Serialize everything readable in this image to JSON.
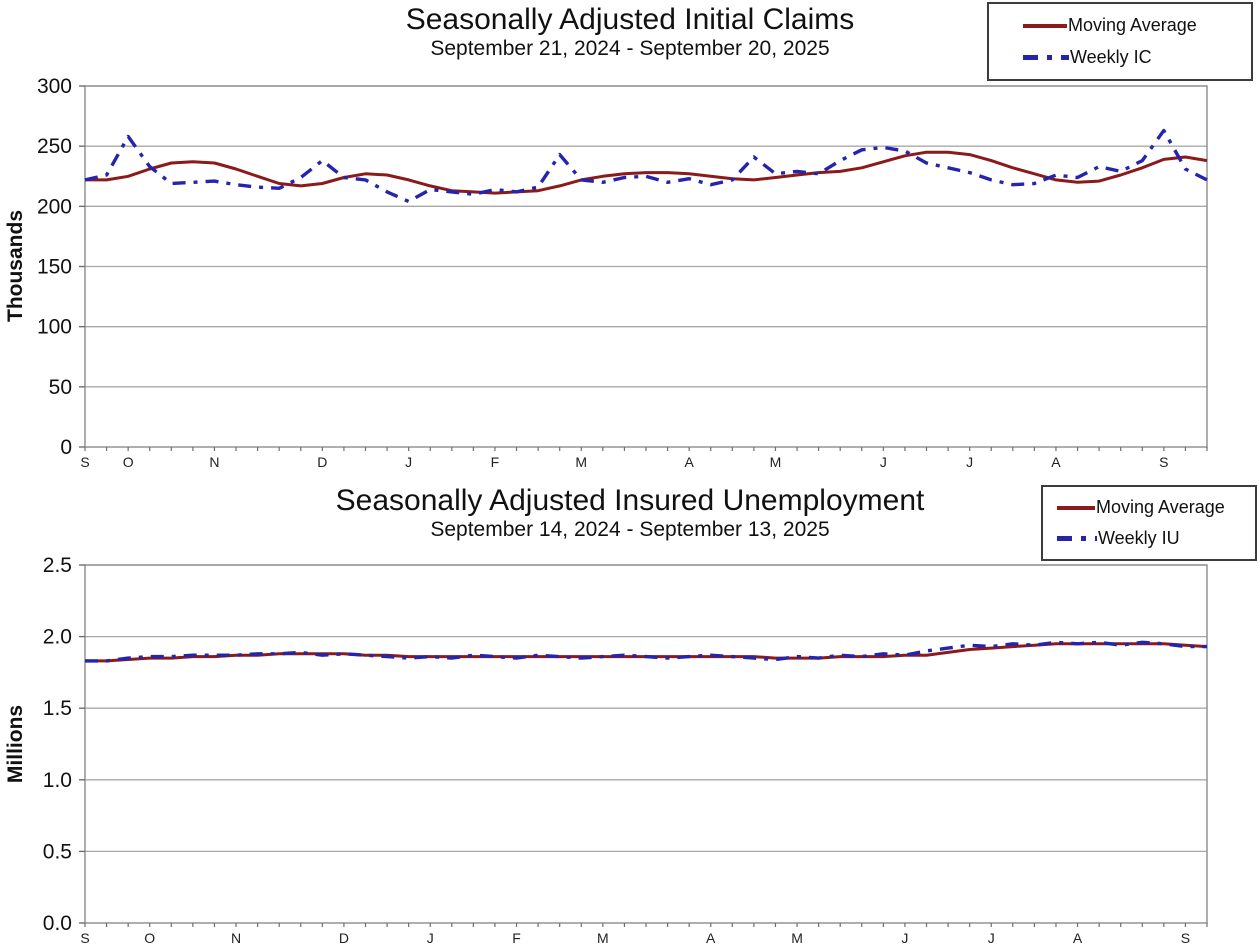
{
  "colors": {
    "moving_average": "#8B1A1A",
    "weekly": "#2424AC",
    "gridline": "#a8a8a8",
    "plot_border": "#8c8c8c",
    "tick": "#6e6e6e",
    "text": "#111111",
    "background": "#ffffff"
  },
  "chart_data": [
    {
      "type": "line",
      "title": "Seasonally Adjusted Initial Claims",
      "subtitle": "September 21, 2024 - September 20, 2025",
      "y_axis_label": "Thousands",
      "units": "thousands",
      "ylim": [
        0,
        300
      ],
      "y_ticks": [
        0,
        50,
        100,
        150,
        200,
        250,
        300
      ],
      "y_tick_labels": [
        "0",
        "50",
        "100",
        "150",
        "200",
        "250",
        "300"
      ],
      "grid": true,
      "legend_position": "top-right",
      "x_month_labels": [
        "S",
        "O",
        "N",
        "D",
        "J",
        "F",
        "M",
        "A",
        "M",
        "J",
        "J",
        "A",
        "S"
      ],
      "x_month_weeks": [
        0,
        2,
        6,
        11,
        15,
        19,
        23,
        28,
        32,
        37,
        41,
        45,
        50
      ],
      "weeks": 53,
      "series": [
        {
          "name": "Moving Average",
          "style": "solid",
          "color": "#8B1A1A",
          "values": [
            222,
            222,
            225,
            231,
            236,
            237,
            236,
            231,
            225,
            219,
            217,
            219,
            224,
            227,
            226,
            222,
            217,
            213,
            212,
            211,
            212,
            213,
            217,
            222,
            225,
            227,
            228,
            228,
            227,
            225,
            223,
            222,
            224,
            226,
            228,
            229,
            232,
            237,
            242,
            245,
            245,
            243,
            238,
            232,
            227,
            222,
            220,
            221,
            226,
            232,
            239,
            241,
            238
          ]
        },
        {
          "name": "Weekly IC",
          "style": "dashed",
          "color": "#2424AC",
          "values": [
            222,
            226,
            258,
            233,
            219,
            220,
            221,
            218,
            216,
            215,
            224,
            238,
            224,
            222,
            212,
            204,
            214,
            212,
            210,
            214,
            212,
            216,
            243,
            222,
            220,
            224,
            225,
            220,
            223,
            218,
            222,
            241,
            227,
            229,
            227,
            238,
            247,
            249,
            246,
            236,
            232,
            228,
            222,
            218,
            219,
            226,
            224,
            233,
            229,
            238,
            263,
            231,
            222
          ]
        }
      ]
    },
    {
      "type": "line",
      "title": "Seasonally Adjusted Insured Unemployment",
      "subtitle": "September 14, 2024 - September 13, 2025",
      "y_axis_label": "Millions",
      "units": "millions",
      "ylim": [
        0,
        2.5
      ],
      "y_ticks": [
        0,
        0.5,
        1.0,
        1.5,
        2.0,
        2.5
      ],
      "y_tick_labels": [
        "0.0",
        "0.5",
        "1.0",
        "1.5",
        "2.0",
        "2.5"
      ],
      "grid": true,
      "legend_position": "top-right",
      "x_month_labels": [
        "S",
        "O",
        "N",
        "D",
        "J",
        "F",
        "M",
        "A",
        "M",
        "J",
        "J",
        "A",
        "S"
      ],
      "x_month_weeks": [
        0,
        3,
        7,
        12,
        16,
        20,
        24,
        29,
        33,
        38,
        42,
        46,
        51
      ],
      "weeks": 53,
      "series": [
        {
          "name": "Moving Average",
          "style": "solid",
          "color": "#8B1A1A",
          "values": [
            1.83,
            1.83,
            1.84,
            1.85,
            1.85,
            1.86,
            1.86,
            1.87,
            1.87,
            1.88,
            1.88,
            1.88,
            1.88,
            1.87,
            1.87,
            1.86,
            1.86,
            1.86,
            1.86,
            1.86,
            1.86,
            1.86,
            1.86,
            1.86,
            1.86,
            1.86,
            1.86,
            1.86,
            1.86,
            1.86,
            1.86,
            1.86,
            1.85,
            1.85,
            1.85,
            1.86,
            1.86,
            1.86,
            1.87,
            1.87,
            1.89,
            1.91,
            1.92,
            1.93,
            1.94,
            1.95,
            1.95,
            1.95,
            1.95,
            1.95,
            1.95,
            1.94,
            1.93
          ]
        },
        {
          "name": "Weekly IU",
          "style": "dashed",
          "color": "#2424AC",
          "values": [
            1.83,
            1.83,
            1.85,
            1.86,
            1.86,
            1.87,
            1.87,
            1.87,
            1.88,
            1.88,
            1.89,
            1.87,
            1.88,
            1.87,
            1.86,
            1.85,
            1.86,
            1.85,
            1.87,
            1.86,
            1.85,
            1.87,
            1.86,
            1.85,
            1.86,
            1.87,
            1.86,
            1.85,
            1.86,
            1.87,
            1.86,
            1.85,
            1.84,
            1.86,
            1.85,
            1.87,
            1.86,
            1.88,
            1.87,
            1.9,
            1.92,
            1.94,
            1.93,
            1.95,
            1.94,
            1.96,
            1.95,
            1.96,
            1.94,
            1.96,
            1.95,
            1.93,
            1.93
          ]
        }
      ]
    }
  ]
}
